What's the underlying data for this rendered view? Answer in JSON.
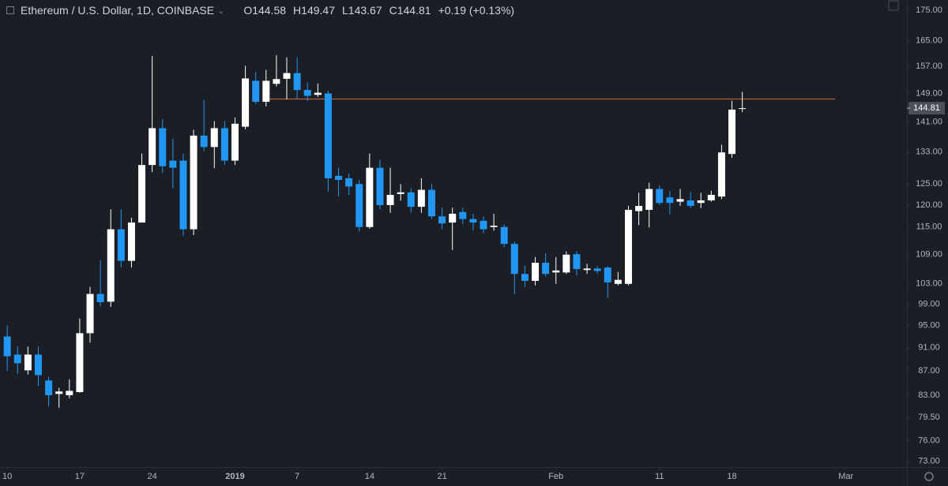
{
  "chart_data": {
    "type": "candlestick",
    "title": "Ethereum / U.S. Dollar, 1D, COINBASE",
    "ohlc_prefixes": [
      "O",
      "H",
      "L",
      "C"
    ],
    "change": "+0.19 (+0.13%)",
    "log_scale": true,
    "grid": false,
    "up_color": "#ffffff",
    "down_color": "#2196f3",
    "hline": {
      "value": 147.4,
      "color": "#b4603c"
    },
    "ylim": [
      72.2,
      178.6
    ],
    "yticks": [
      {
        "value": 175,
        "label": "175.00"
      },
      {
        "value": 165,
        "label": "165.00"
      },
      {
        "value": 157,
        "label": "157.00"
      },
      {
        "value": 149,
        "label": "149.00"
      },
      {
        "value": 141,
        "label": "141.00"
      },
      {
        "value": 133,
        "label": "133.00"
      },
      {
        "value": 125,
        "label": "125.00"
      },
      {
        "value": 120,
        "label": "120.00"
      },
      {
        "value": 115,
        "label": "115.00"
      },
      {
        "value": 109,
        "label": "109.00"
      },
      {
        "value": 103,
        "label": "103.00"
      },
      {
        "value": 99,
        "label": "99.00"
      },
      {
        "value": 95,
        "label": "95.00"
      },
      {
        "value": 91,
        "label": "91.00"
      },
      {
        "value": 87,
        "label": "87.00"
      },
      {
        "value": 83,
        "label": "83.00"
      },
      {
        "value": 79.5,
        "label": "79.50"
      },
      {
        "value": 76,
        "label": "76.00"
      },
      {
        "value": 73,
        "label": "73.00"
      }
    ],
    "xlim": [
      -0.7,
      86.9
    ],
    "xticks": [
      {
        "value": 0,
        "label": "10"
      },
      {
        "value": 7,
        "label": "17"
      },
      {
        "value": 14,
        "label": "24"
      },
      {
        "value": 22,
        "label": "2019"
      },
      {
        "value": 28,
        "label": "7"
      },
      {
        "value": 35,
        "label": "14"
      },
      {
        "value": 42,
        "label": "21"
      },
      {
        "value": 53,
        "label": "Feb"
      },
      {
        "value": 63,
        "label": "11"
      },
      {
        "value": 70,
        "label": "18"
      },
      {
        "value": 81,
        "label": "Mar"
      }
    ],
    "open": [
      93,
      89.8,
      87.1,
      89.8,
      85.4,
      83.2,
      83,
      83.5,
      93.6,
      101,
      99.5,
      114.5,
      107.7,
      116,
      129.7,
      139.3,
      130.8,
      130.8,
      114.5,
      137.3,
      134.3,
      139.3,
      130.8,
      139.7,
      152.7,
      146.6,
      151.8,
      153.3,
      155,
      150,
      148.6,
      149,
      127,
      126.4,
      125,
      115,
      129,
      120,
      122.6,
      123,
      119.6,
      123.6,
      117.4,
      116,
      118.4,
      116.8,
      116.4,
      115,
      115,
      111.3,
      105,
      103.6,
      107.3,
      105.3,
      105.3,
      109.1,
      105.8,
      106.1,
      106.3,
      103.0,
      103.0,
      118.6,
      118.9,
      123.8,
      121.8,
      120.8,
      121.1,
      120.5,
      121.1,
      122.0,
      132.5,
      144.58
    ],
    "high": [
      95,
      91.2,
      91.2,
      91.2,
      86,
      84.2,
      85.6,
      96.3,
      102.4,
      107.8,
      119,
      119,
      117.1,
      132.6,
      160.2,
      141.8,
      136.5,
      132.6,
      138.9,
      147.2,
      141.2,
      141.2,
      142.2,
      157.2,
      155.3,
      156,
      160.5,
      159.8,
      159.8,
      152.2,
      151.9,
      149.8,
      129,
      127.6,
      126,
      132.6,
      131,
      129,
      125,
      124,
      126.4,
      125,
      119.4,
      119.4,
      119.4,
      118,
      117.4,
      118,
      115.6,
      111.8,
      106.7,
      108.5,
      109.3,
      108.5,
      109.7,
      109.7,
      107.1,
      106.6,
      106.6,
      105.4,
      119.8,
      122.9,
      125.3,
      124.7,
      123.4,
      123.8,
      123.1,
      122.9,
      123.4,
      134.9,
      146.9,
      149.47
    ],
    "low": [
      87,
      86.5,
      86.4,
      84.5,
      81.2,
      81,
      82.5,
      83.4,
      91.9,
      98.6,
      98.5,
      106.3,
      106.3,
      116,
      127.9,
      127.7,
      124,
      113,
      113.2,
      133.2,
      128.9,
      129.7,
      129.7,
      139,
      146,
      145.3,
      151,
      147.3,
      147.3,
      146.8,
      148,
      123.2,
      122,
      122.4,
      114,
      114.6,
      119,
      118.2,
      121,
      118.2,
      118.2,
      116.8,
      114.5,
      110,
      115.6,
      114.2,
      113.6,
      114.2,
      110.6,
      101,
      102.4,
      102.7,
      104.5,
      103,
      105,
      104.7,
      105.0,
      105.0,
      100.2,
      102.7,
      102.7,
      115.4,
      114.9,
      120.0,
      117.9,
      119.8,
      119.3,
      119.3,
      120.8,
      121.4,
      131.5,
      143.67
    ],
    "close": [
      89.5,
      88.3,
      89.8,
      86.3,
      83,
      83.6,
      83.7,
      93.6,
      101,
      99.4,
      114.5,
      107.7,
      116,
      129.7,
      139.3,
      129.4,
      129,
      114.5,
      137.3,
      134.3,
      139.3,
      130.8,
      140.5,
      153.4,
      146.6,
      152.7,
      153.2,
      155,
      150,
      148.3,
      149.2,
      126.4,
      126,
      124.4,
      115,
      129,
      120,
      122.4,
      123,
      119.6,
      123.6,
      117.4,
      115.8,
      118,
      116.8,
      116,
      114.5,
      115.3,
      111.3,
      105,
      103.6,
      107.3,
      105,
      105.7,
      109,
      106.0,
      106.1,
      105.6,
      103.3,
      103.8,
      118.9,
      119.8,
      123.8,
      120.5,
      120.5,
      121.4,
      119.8,
      121.1,
      122.4,
      132.9,
      144.4,
      144.81
    ]
  }
}
